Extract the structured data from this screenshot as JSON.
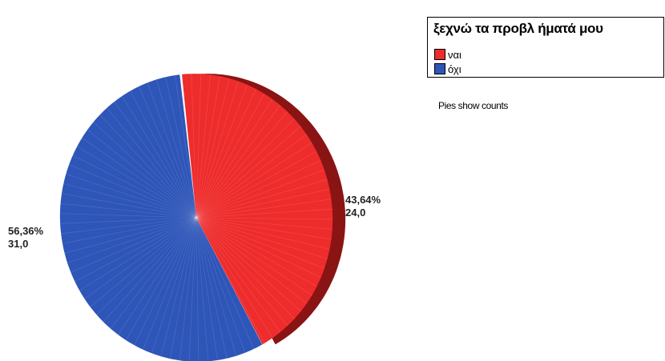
{
  "chart_data": {
    "type": "pie",
    "categories": [
      "ναι",
      "όχι"
    ],
    "values": [
      24,
      31
    ],
    "percentages": [
      "43,64%",
      "56,36%"
    ],
    "counts": [
      "24,0",
      "31,0"
    ],
    "colors": [
      "#ee2c2c",
      "#2e55b8"
    ],
    "side_colors": [
      "#8a1414",
      "#1c3578"
    ],
    "legend_title": "ξεχνώ τα προβλ ήματά μου",
    "legend_position": "top-right",
    "note": "Pies show counts"
  }
}
